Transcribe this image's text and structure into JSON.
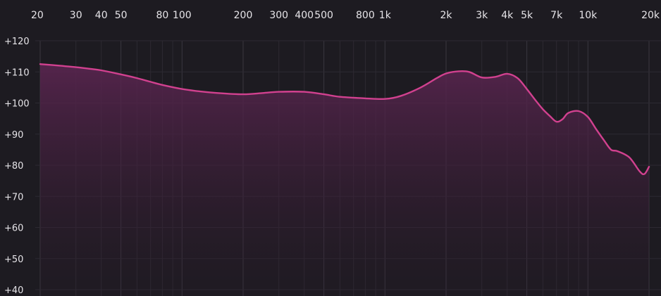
{
  "chart_data": {
    "type": "area",
    "title": "",
    "xlabel": "",
    "ylabel": "",
    "x_scale": "log",
    "xlim": [
      20,
      20000
    ],
    "ylim": [
      40,
      120
    ],
    "grid": true,
    "x_tick_labels": [
      {
        "value": 20,
        "label": "20"
      },
      {
        "value": 30,
        "label": "30"
      },
      {
        "value": 40,
        "label": "40"
      },
      {
        "value": 50,
        "label": "50"
      },
      {
        "value": 80,
        "label": "80"
      },
      {
        "value": 100,
        "label": "100"
      },
      {
        "value": 200,
        "label": "200"
      },
      {
        "value": 300,
        "label": "300"
      },
      {
        "value": 400,
        "label": "400"
      },
      {
        "value": 500,
        "label": "500"
      },
      {
        "value": 800,
        "label": "800"
      },
      {
        "value": 1000,
        "label": "1k"
      },
      {
        "value": 2000,
        "label": "2k"
      },
      {
        "value": 3000,
        "label": "3k"
      },
      {
        "value": 4000,
        "label": "4k"
      },
      {
        "value": 5000,
        "label": "5k"
      },
      {
        "value": 7000,
        "label": "7k"
      },
      {
        "value": 10000,
        "label": "10k"
      },
      {
        "value": 20000,
        "label": "20k"
      }
    ],
    "y_tick_labels": [
      {
        "value": 120,
        "label": "+120"
      },
      {
        "value": 110,
        "label": "+110"
      },
      {
        "value": 100,
        "label": "+100"
      },
      {
        "value": 90,
        "label": "+90"
      },
      {
        "value": 80,
        "label": "+80"
      },
      {
        "value": 70,
        "label": "+70"
      },
      {
        "value": 60,
        "label": "+60"
      },
      {
        "value": 50,
        "label": "+50"
      },
      {
        "value": 40,
        "label": "+40"
      }
    ],
    "series": [
      {
        "x": [
          20,
          25,
          30,
          35,
          40,
          50,
          60,
          70,
          80,
          100,
          120,
          150,
          200,
          250,
          300,
          400,
          500,
          600,
          800,
          1000,
          1200,
          1500,
          1800,
          2000,
          2300,
          2600,
          3000,
          3500,
          4000,
          4500,
          5000,
          5500,
          6000,
          6500,
          7000,
          7500,
          8000,
          9000,
          10000,
          11000,
          12000,
          13000,
          14000,
          16000,
          18000,
          19000,
          20000
        ],
        "y": [
          112.5,
          112.0,
          111.5,
          111.0,
          110.5,
          109.2,
          108.0,
          106.8,
          105.8,
          104.5,
          103.8,
          103.2,
          102.8,
          103.2,
          103.6,
          103.6,
          102.8,
          102.0,
          101.5,
          101.3,
          102.3,
          105.0,
          108.0,
          109.5,
          110.2,
          110.0,
          108.2,
          108.4,
          109.4,
          108.0,
          104.5,
          101.0,
          98.0,
          95.8,
          94.0,
          94.8,
          96.8,
          97.4,
          95.5,
          91.5,
          88.0,
          85.0,
          84.5,
          82.5,
          78.0,
          77.2,
          79.5
        ]
      }
    ],
    "colors": {
      "line": "#d1418f",
      "fill_top": "#5a2550",
      "background": "#1d1b21",
      "grid_major": "#3a3740",
      "grid_minor": "#2d2a32",
      "text": "#e6e4e8"
    }
  }
}
